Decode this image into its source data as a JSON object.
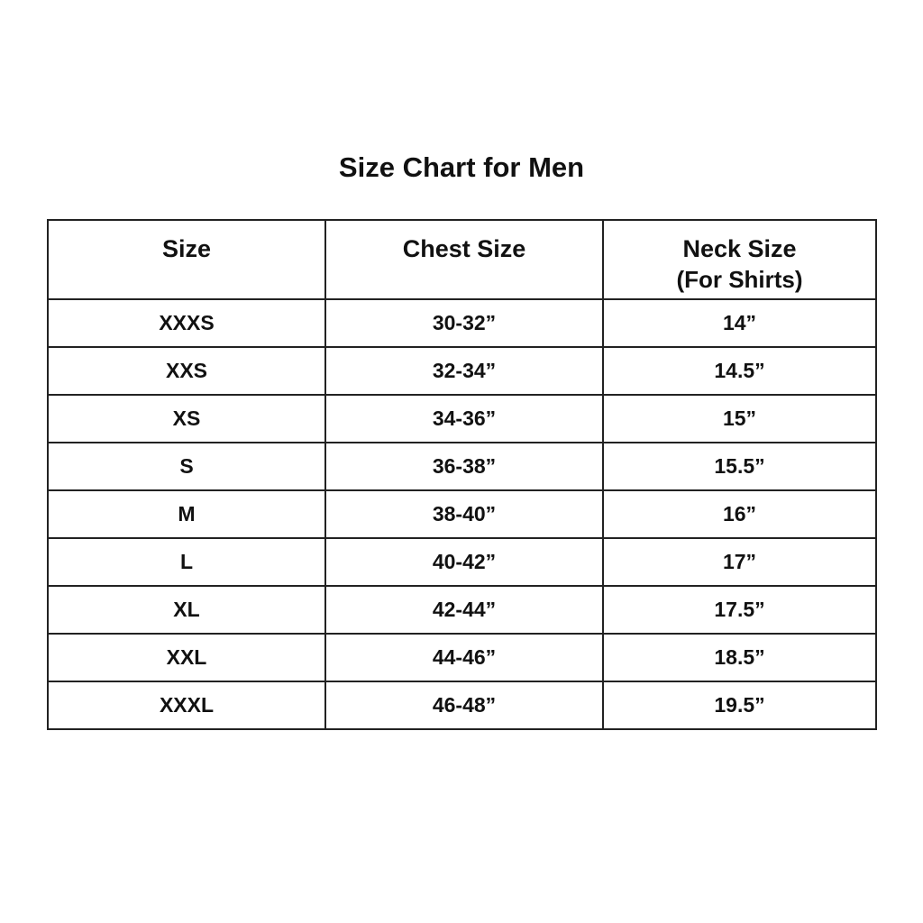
{
  "title": "Size Chart for Men",
  "table": {
    "headers": [
      "Size",
      "Chest Size",
      "Neck Size"
    ],
    "header_sub": [
      "",
      "",
      "(For Shirts)"
    ],
    "rows": [
      [
        "XXXS",
        "30-32”",
        "14”"
      ],
      [
        "XXS",
        "32-34”",
        "14.5”"
      ],
      [
        "XS",
        "34-36”",
        "15”"
      ],
      [
        "S",
        "36-38”",
        "15.5”"
      ],
      [
        "M",
        "38-40”",
        "16”"
      ],
      [
        "L",
        "40-42”",
        "17”"
      ],
      [
        "XL",
        "42-44”",
        "17.5”"
      ],
      [
        "XXL",
        "44-46”",
        "18.5”"
      ],
      [
        "XXXL",
        "46-48”",
        "19.5”"
      ]
    ]
  }
}
